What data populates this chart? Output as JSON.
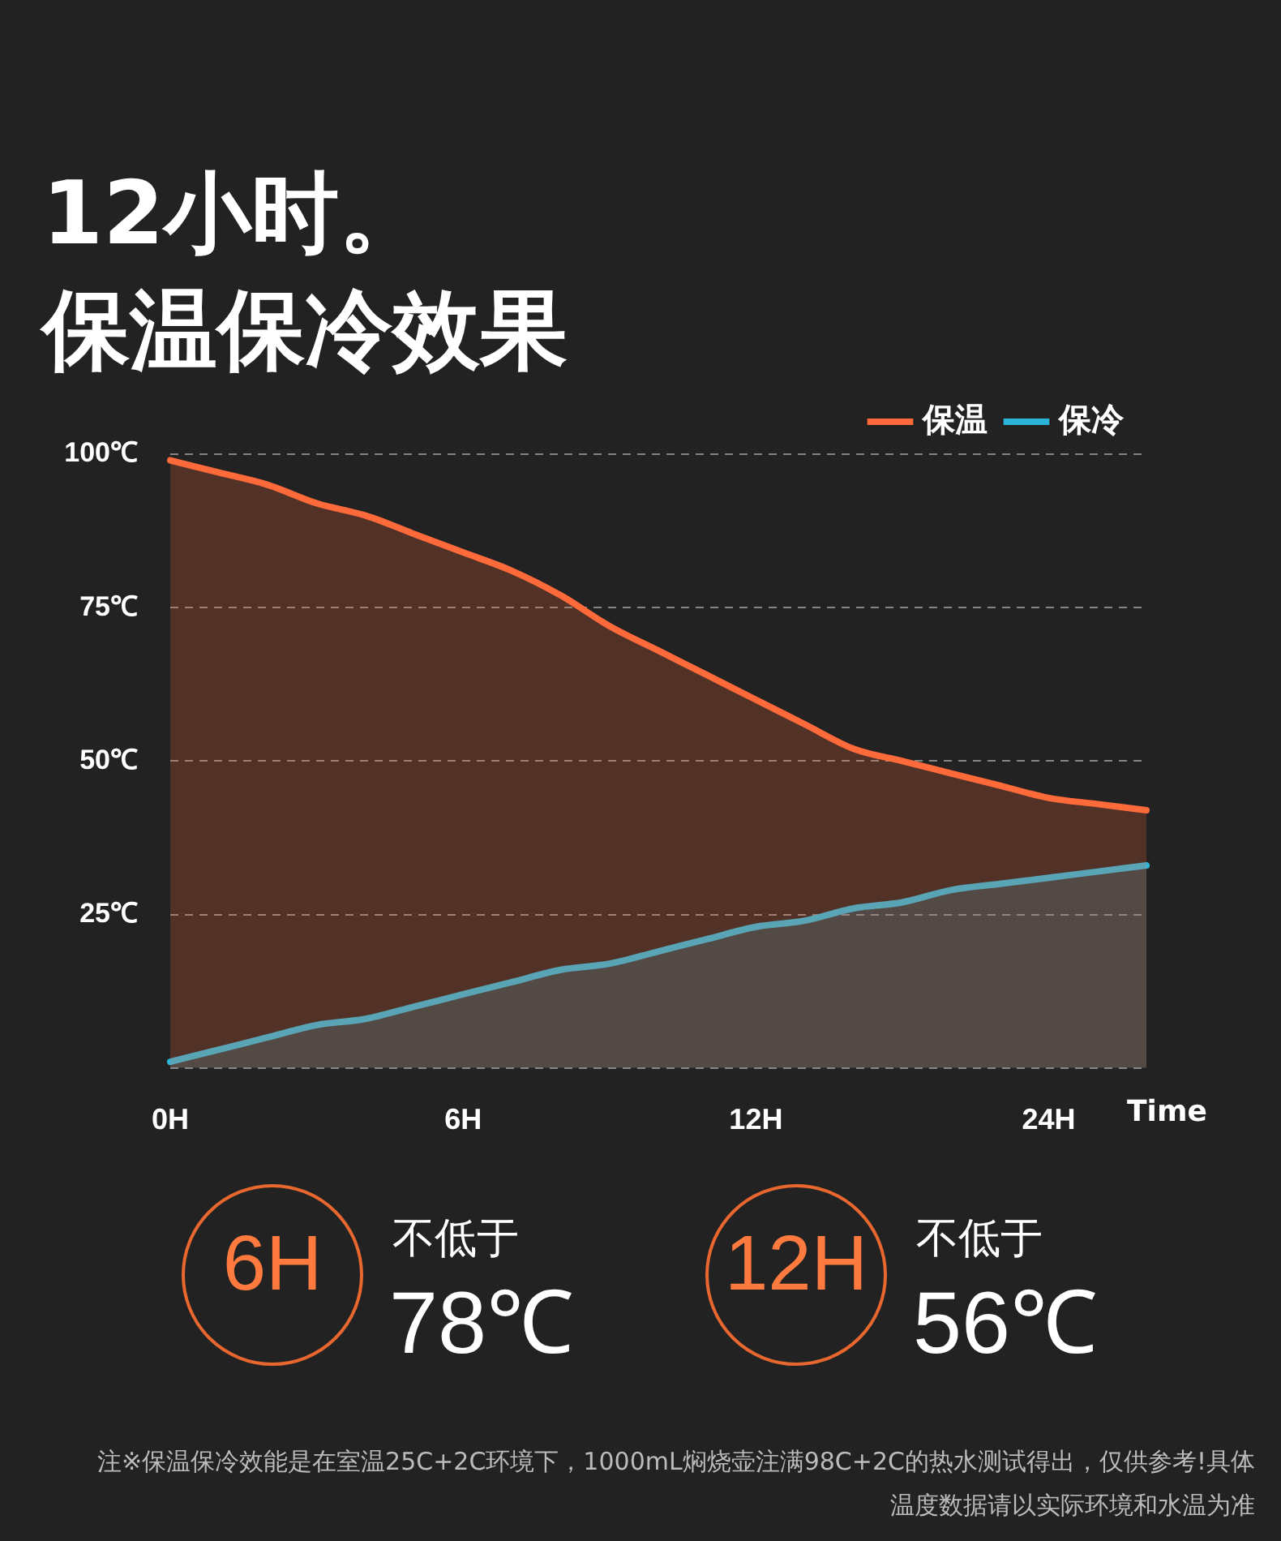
{
  "chart_data": {
    "type": "area",
    "title": "12小时。",
    "subtitle": "保温保冷效果",
    "xlabel": "Time",
    "categories": [
      "0H",
      null,
      null,
      null,
      null,
      null,
      "6H",
      null,
      null,
      null,
      null,
      null,
      "12H",
      null,
      null,
      null,
      null,
      null,
      "24H",
      null,
      null
    ],
    "series": [
      {
        "name": "保温",
        "color": "#ff6a3a",
        "values": [
          99,
          97,
          95,
          92,
          90,
          87,
          84,
          81,
          77,
          72,
          68,
          64,
          60,
          56,
          52,
          50,
          48,
          46,
          44,
          43,
          42
        ]
      },
      {
        "name": "保冷",
        "color": "#2bb5d8",
        "values": [
          1,
          3,
          5,
          7,
          8,
          10,
          12,
          14,
          16,
          17,
          19,
          21,
          23,
          24,
          26,
          27,
          29,
          30,
          31,
          32,
          33
        ]
      }
    ],
    "ylim": [
      0,
      100
    ],
    "yticks": [
      {
        "value": 0,
        "label": null
      },
      {
        "value": 25,
        "label": "25℃"
      },
      {
        "value": 50,
        "label": "50℃"
      },
      {
        "value": 75,
        "label": "75℃"
      },
      {
        "value": 100,
        "label": "100℃"
      }
    ],
    "grid": "y",
    "legend": "top right",
    "marker": "none",
    "line_style": "solid",
    "annotations": [
      "6H",
      "不低于",
      "78℃",
      "12H",
      "不低于",
      "56℃",
      "注※保温保冷效能是在室温25C+2C环境下，1000mL焖烧壶注满98C+2C的热水测试得出，仅供参考!具体温度数据请以实际环境和水温为准"
    ]
  }
}
